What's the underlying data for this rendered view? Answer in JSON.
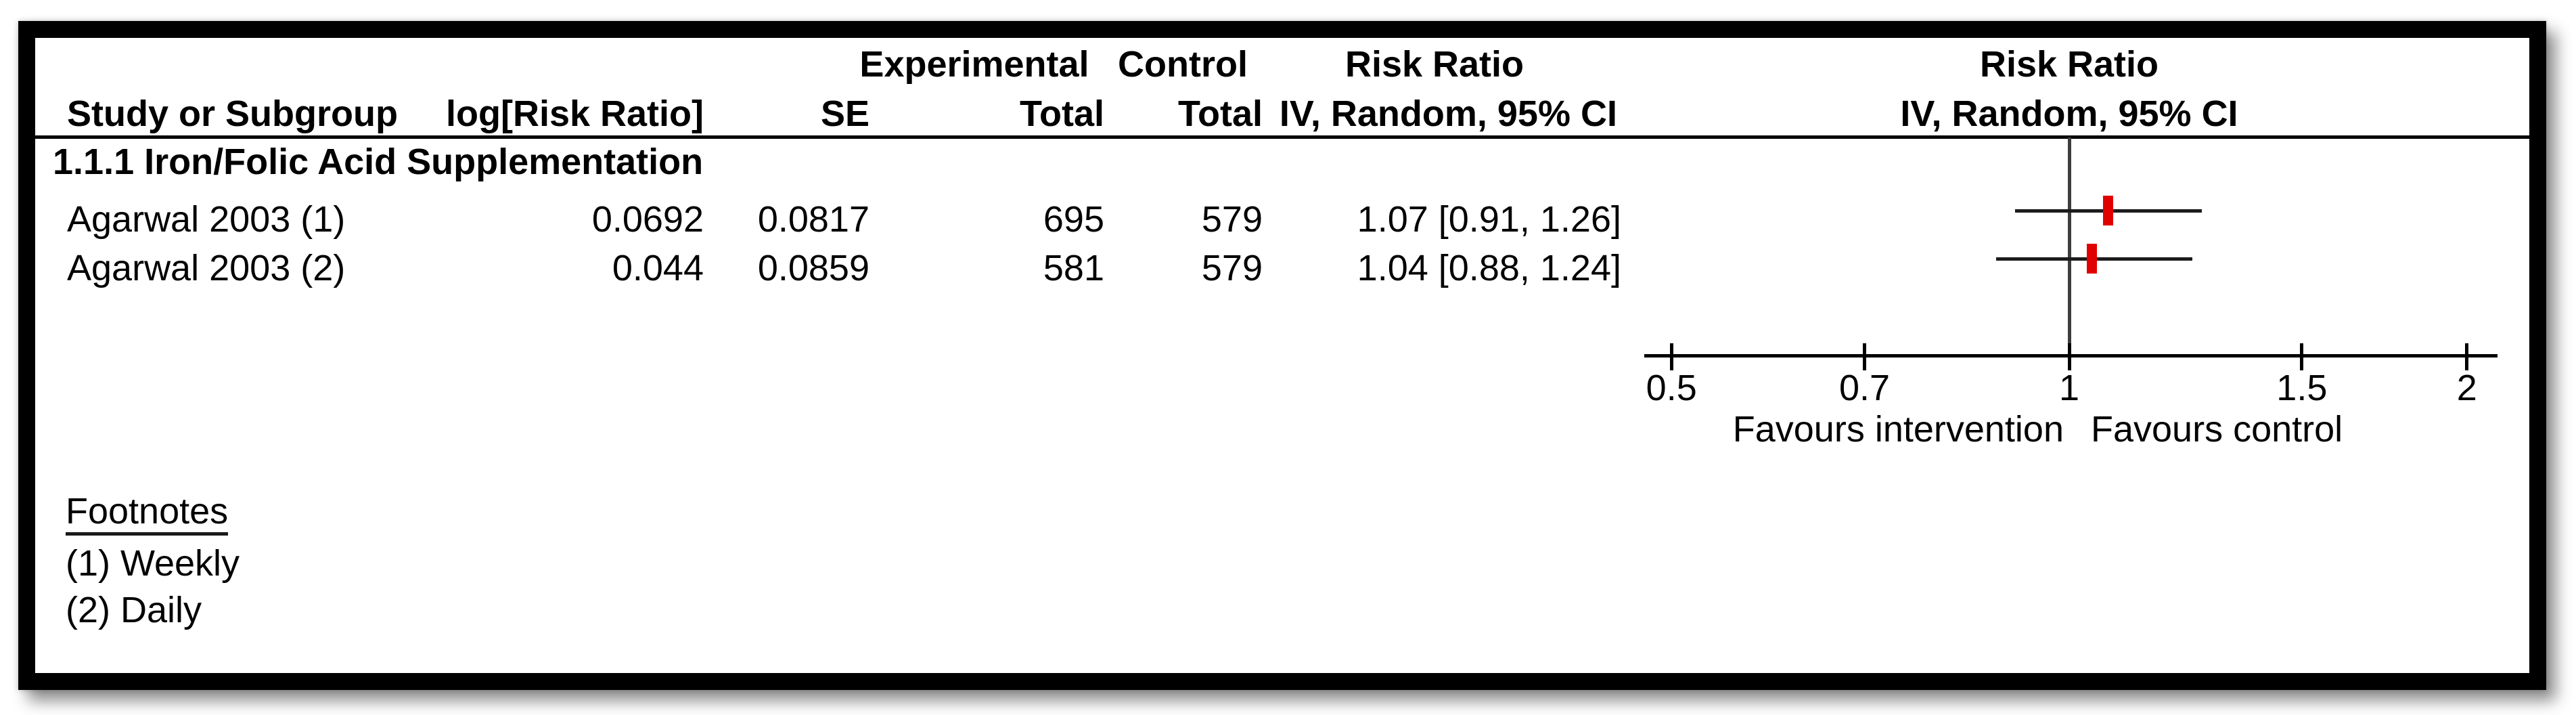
{
  "figure": {
    "header_row1": {
      "experimental": "Experimental",
      "control": "Control",
      "risk_ratio_table": "Risk Ratio",
      "risk_ratio_plot": "Risk Ratio"
    },
    "header_row2": {
      "study_or_subgroup": "Study or Subgroup",
      "log_risk_ratio": "log[Risk Ratio]",
      "se": "SE",
      "total_experimental": "Total",
      "total_control": "Total",
      "iv_random_ci_table": "IV, Random, 95% CI",
      "iv_random_ci_plot": "IV, Random, 95% CI"
    },
    "subgroup_heading": "1.1.1 Iron/Folic Acid Supplementation",
    "rows": [
      {
        "study": "Agarwal 2003 (1)",
        "log_risk_ratio": "0.0692",
        "se": "0.0817",
        "total_experimental": "695",
        "total_control": "579",
        "risk_ratio_ci": "1.07 [0.91, 1.26]"
      },
      {
        "study": "Agarwal 2003 (2)",
        "log_risk_ratio": "0.044",
        "se": "0.0859",
        "total_experimental": "581",
        "total_control": "579",
        "risk_ratio_ci": "1.04 [0.88, 1.24]"
      }
    ],
    "axis_labels": {
      "favours_left": "Favours intervention",
      "favours_right": "Favours control"
    },
    "footnotes": {
      "heading": "Footnotes",
      "items": [
        "(1) Weekly",
        "(2) Daily"
      ]
    }
  },
  "chart_data": {
    "type": "forest",
    "x_scale": "log",
    "title": "Risk Ratio IV, Random, 95% CI",
    "axis_ticks": [
      0.5,
      0.7,
      1,
      1.5,
      2
    ],
    "axis_range": [
      0.477,
      2.11
    ],
    "null_line": 1,
    "marker_color": "#e10000",
    "studies": [
      {
        "label": "Agarwal 2003 (1)",
        "log_rr": 0.0692,
        "se": 0.0817,
        "rr": 1.07,
        "ci_low": 0.91,
        "ci_high": 1.26
      },
      {
        "label": "Agarwal 2003 (2)",
        "log_rr": 0.044,
        "se": 0.0859,
        "rr": 1.04,
        "ci_low": 0.88,
        "ci_high": 1.24
      }
    ]
  }
}
